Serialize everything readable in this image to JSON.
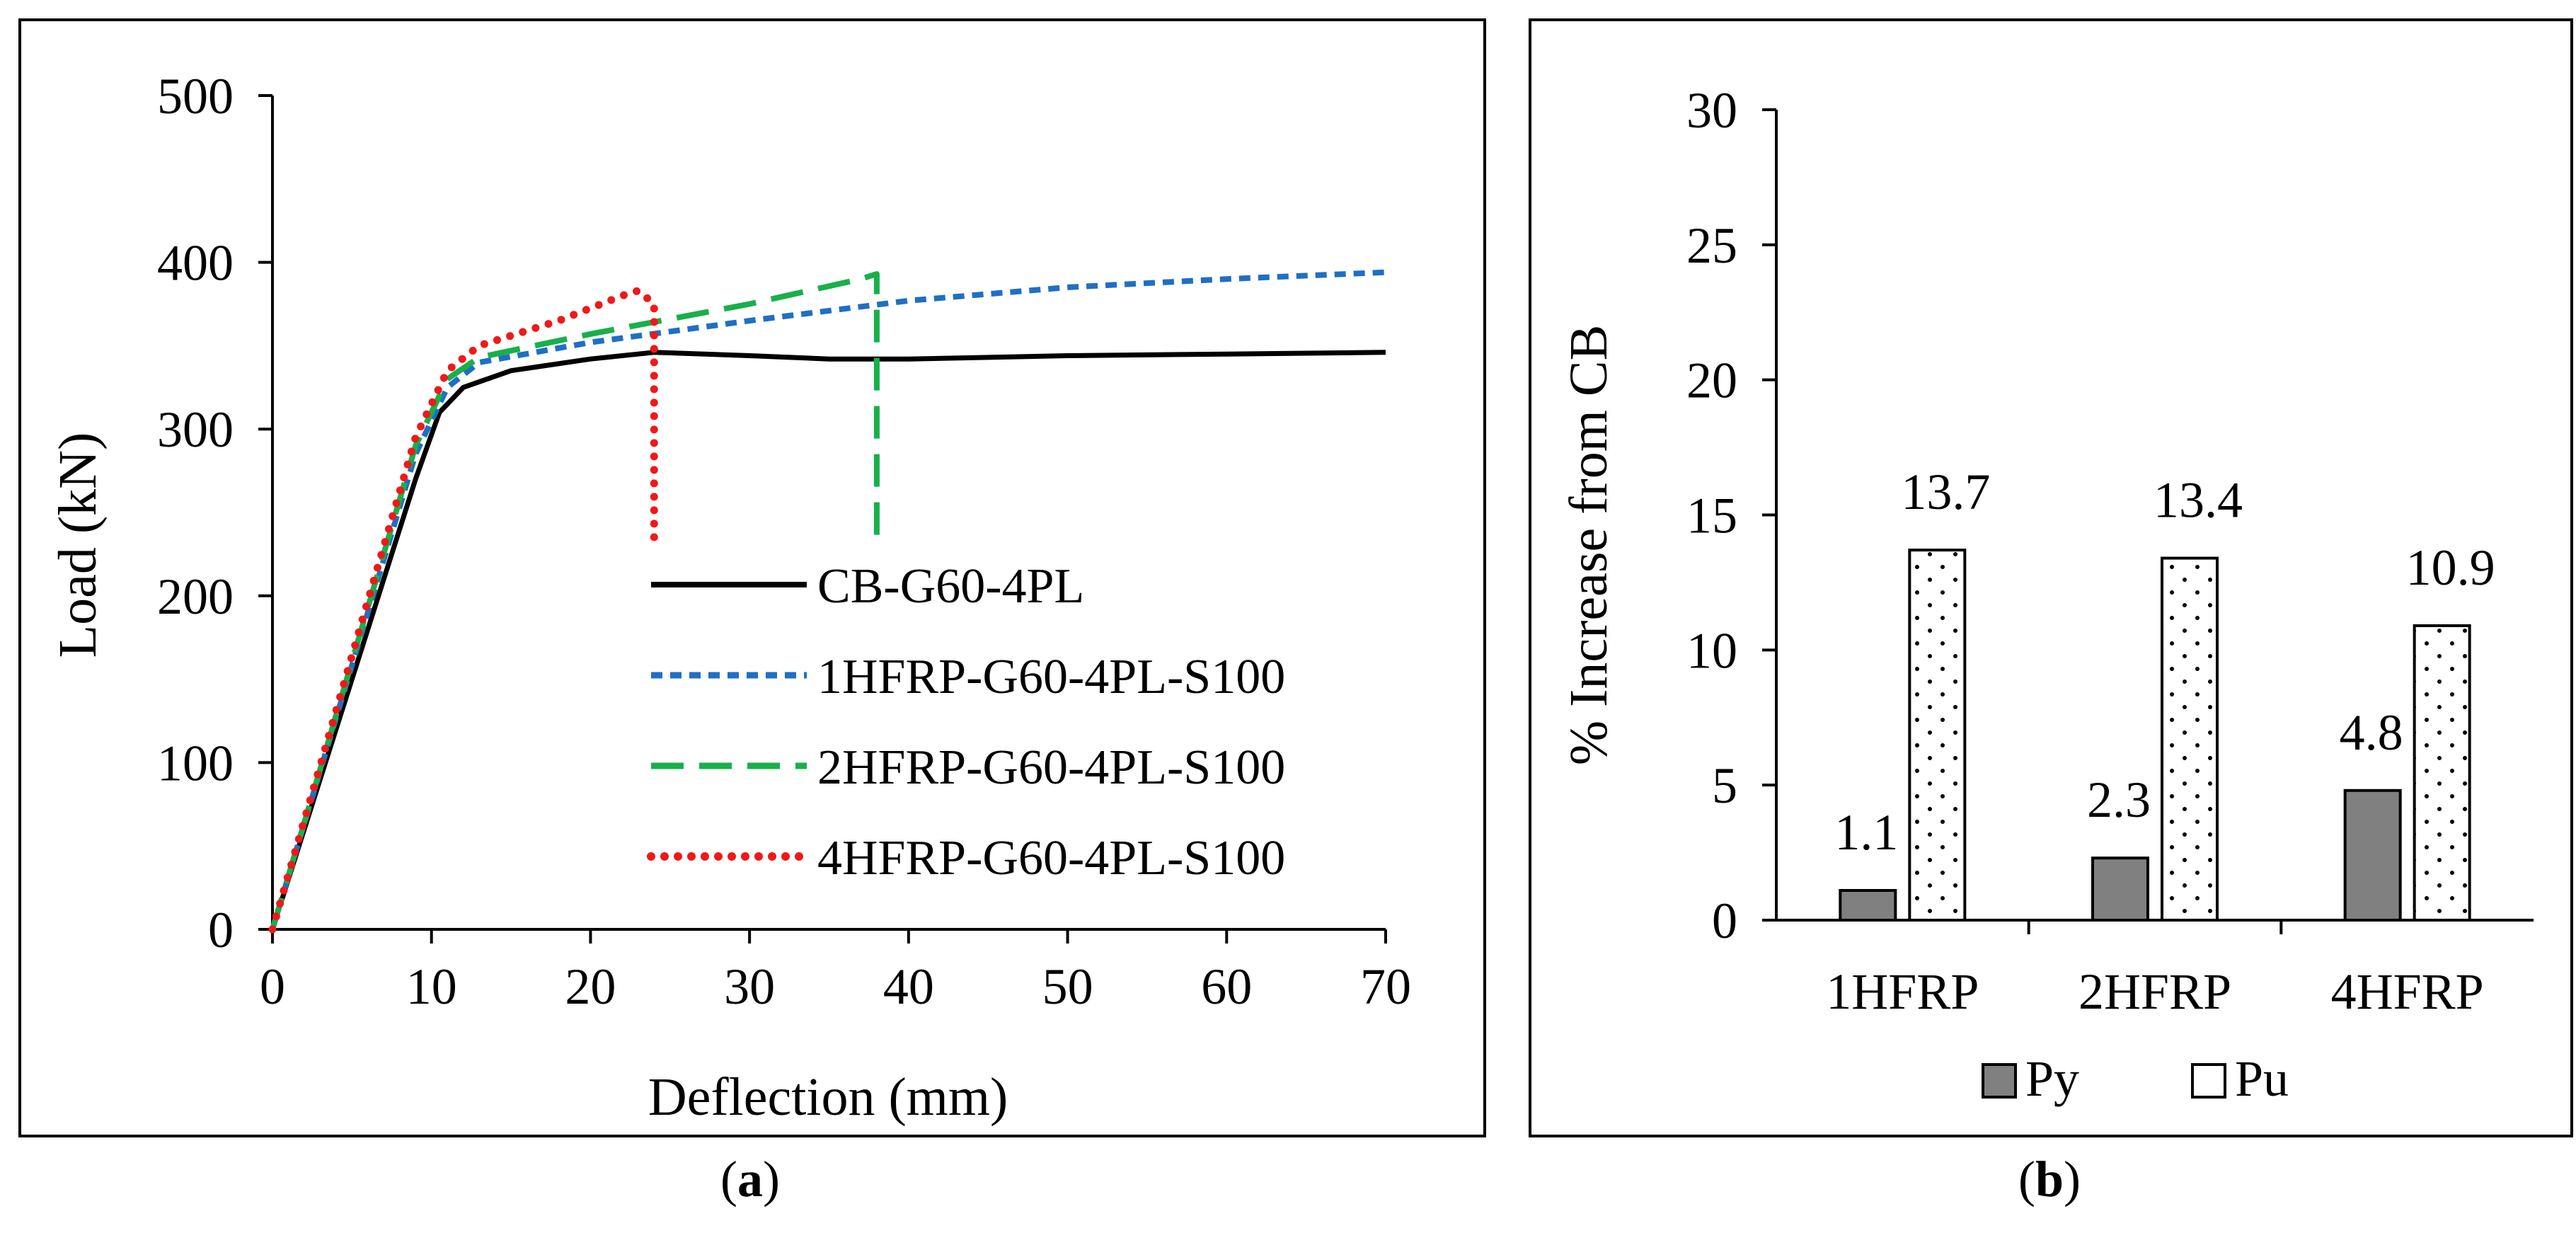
{
  "colors": {
    "cb": "#000000",
    "h1": "#1f6fc4",
    "h2": "#18b04a",
    "h4": "#f01818",
    "py_fill": "#808080",
    "pu_fill": "#ffffff",
    "frame": "#000000"
  },
  "captions": {
    "a_open": "(",
    "a_letter": "a",
    "a_close": ")",
    "b_open": "(",
    "b_letter": "b",
    "b_close": ")"
  },
  "chart_data": [
    {
      "type": "line",
      "panel": "a",
      "xlabel": "Deflection (mm)",
      "ylabel": "Load (kN)",
      "xlim": [
        0,
        70
      ],
      "ylim": [
        0,
        500
      ],
      "xticks": [
        0,
        10,
        20,
        30,
        40,
        50,
        60,
        70
      ],
      "yticks": [
        0,
        100,
        200,
        300,
        400,
        500
      ],
      "legend_position": "center-right",
      "series": [
        {
          "name": "CB-G60-4PL",
          "style": "solid",
          "color": "#000000",
          "points": [
            [
              0,
              0
            ],
            [
              3,
              90
            ],
            [
              6,
              180
            ],
            [
              9,
              270
            ],
            [
              10.5,
              310
            ],
            [
              12,
              325
            ],
            [
              15,
              335
            ],
            [
              20,
              342
            ],
            [
              24,
              346
            ],
            [
              30,
              344
            ],
            [
              35,
              342
            ],
            [
              40,
              342
            ],
            [
              50,
              344
            ],
            [
              60,
              345
            ],
            [
              70,
              346
            ]
          ]
        },
        {
          "name": "1HFRP-G60-4PL-S100",
          "style": "short-dash",
          "color": "#1f6fc4",
          "points": [
            [
              0,
              0
            ],
            [
              3,
              95
            ],
            [
              6,
              190
            ],
            [
              9,
              285
            ],
            [
              11,
              325
            ],
            [
              13,
              340
            ],
            [
              20,
              352
            ],
            [
              30,
              365
            ],
            [
              40,
              377
            ],
            [
              50,
              385
            ],
            [
              60,
              390
            ],
            [
              70,
              394
            ]
          ]
        },
        {
          "name": "2HFRP-G60-4PL-S100",
          "style": "long-dash",
          "color": "#18b04a",
          "points": [
            [
              0,
              0
            ],
            [
              3,
              96
            ],
            [
              6,
              193
            ],
            [
              9,
              290
            ],
            [
              11,
              330
            ],
            [
              13,
              343
            ],
            [
              20,
              357
            ],
            [
              30,
              375
            ],
            [
              37,
              390
            ],
            [
              38,
              393
            ],
            [
              38,
              230
            ]
          ]
        },
        {
          "name": "4HFRP-G60-4PL-S100",
          "style": "dotted",
          "color": "#f01818",
          "points": [
            [
              0,
              0
            ],
            [
              3,
              98
            ],
            [
              6,
              197
            ],
            [
              9,
              295
            ],
            [
              11,
              335
            ],
            [
              13,
              350
            ],
            [
              18,
              365
            ],
            [
              22,
              380
            ],
            [
              23,
              383
            ],
            [
              24,
              375
            ],
            [
              24,
              230
            ]
          ]
        }
      ]
    },
    {
      "type": "bar",
      "panel": "b",
      "ylabel": "% Increase from CB",
      "ylim": [
        0,
        30
      ],
      "yticks": [
        0,
        5,
        10,
        15,
        20,
        25,
        30
      ],
      "categories": [
        "1HFRP",
        "2HFRP",
        "4HFRP"
      ],
      "legend_position": "bottom",
      "series": [
        {
          "name": "Py",
          "pattern": "solid-gray",
          "values": [
            1.1,
            2.3,
            4.8
          ],
          "labels": [
            "1.1",
            "2.3",
            "4.8"
          ]
        },
        {
          "name": "Pu",
          "pattern": "dotted-white",
          "values": [
            13.7,
            13.4,
            10.9
          ],
          "labels": [
            "13.7",
            "13.4",
            "10.9"
          ]
        }
      ]
    }
  ]
}
